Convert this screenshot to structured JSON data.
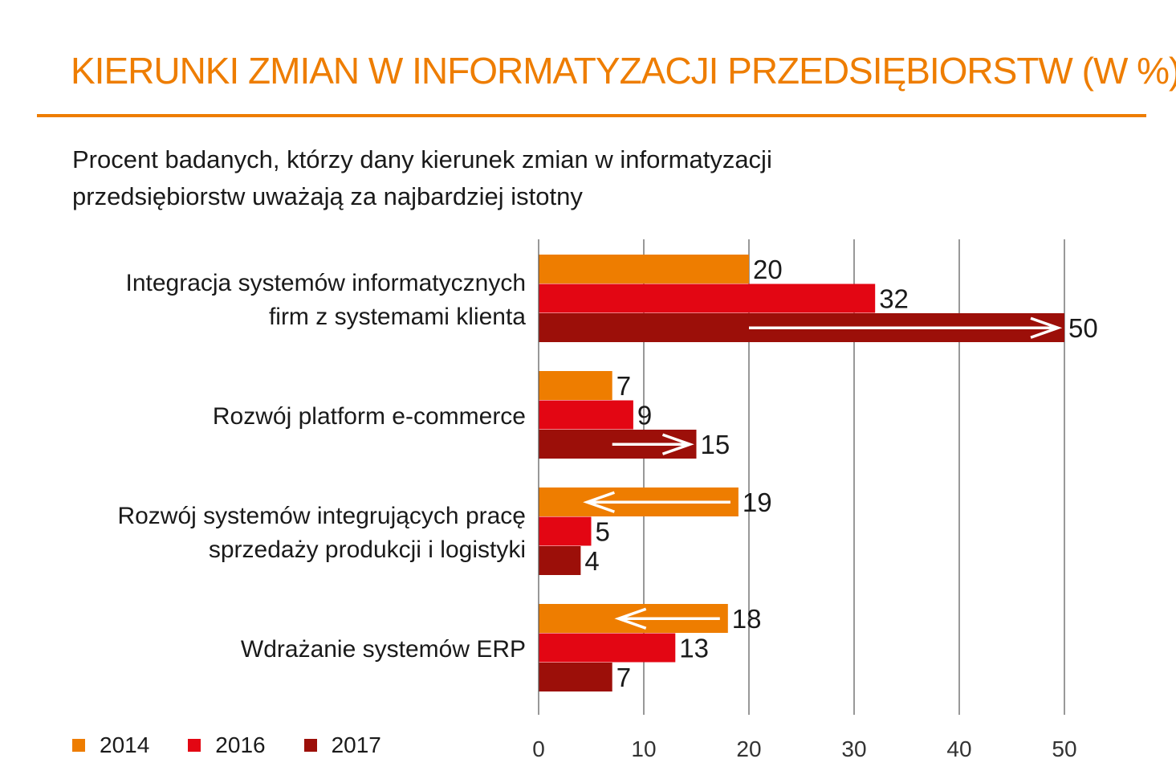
{
  "title": "KIERUNKI ZMIAN W INFORMATYZACJI PRZEDSIĘBIORSTW (W %)",
  "subtitle": "Procent badanych, którzy dany kierunek zmian w informatyzacji przedsiębiorstw uważają za najbardziej istotny",
  "colors": {
    "accent": "#EE7D00",
    "2014": "#EE7D00",
    "2016": "#E30613",
    "2017": "#9C0F09",
    "text": "#1a1a1a",
    "grid": "#555555"
  },
  "chart_data": {
    "type": "bar",
    "orientation": "horizontal",
    "categories": [
      [
        "Integracja systemów informatycznych",
        "firm z systemami klienta"
      ],
      [
        "Rozwój platform e-commerce"
      ],
      [
        "Rozwój systemów integrujących pracę",
        "sprzedaży produkcji i logistyki"
      ],
      [
        "Wdrażanie systemów ERP"
      ]
    ],
    "series": [
      {
        "name": "2014",
        "values": [
          20,
          7,
          19,
          18
        ]
      },
      {
        "name": "2016",
        "values": [
          32,
          9,
          5,
          13
        ]
      },
      {
        "name": "2017",
        "values": [
          50,
          15,
          4,
          7
        ]
      }
    ],
    "xlim": [
      0,
      50
    ],
    "xticks": [
      0,
      10,
      20,
      30,
      40,
      50
    ],
    "grid": true,
    "legend_position": "bottom-left",
    "annotations": [
      {
        "category_index": 0,
        "series": "2017",
        "arrow": "right",
        "from": 20,
        "to": 50
      },
      {
        "category_index": 1,
        "series": "2017",
        "arrow": "right",
        "from": 7,
        "to": 15
      },
      {
        "category_index": 2,
        "series": "2014",
        "arrow": "left",
        "from": 19,
        "to": 4
      },
      {
        "category_index": 3,
        "series": "2014",
        "arrow": "left",
        "from": 18,
        "to": 7
      }
    ]
  }
}
